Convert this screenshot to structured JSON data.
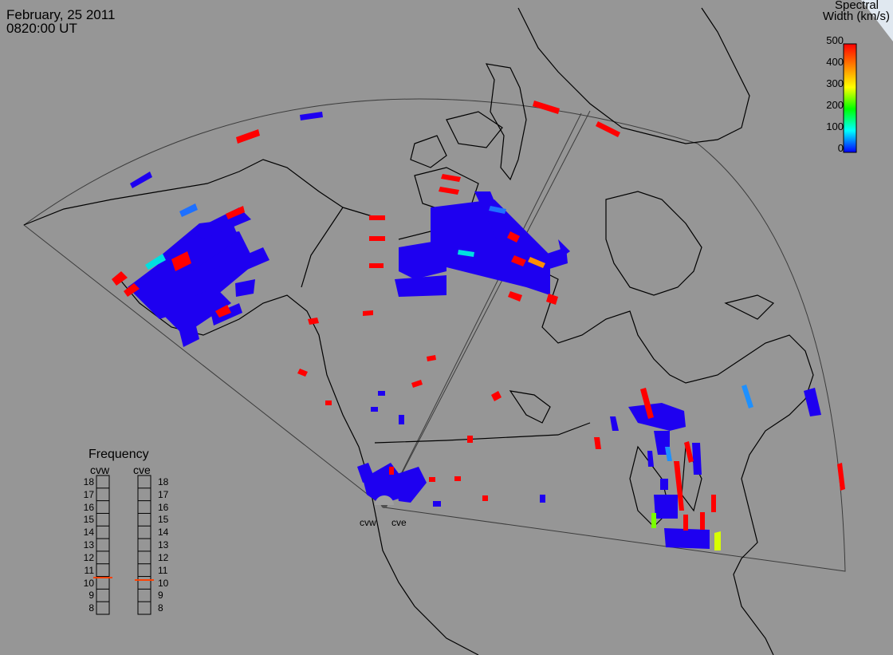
{
  "header": {
    "date": "February, 25 2011",
    "time": "0820:00 UT"
  },
  "colorbar": {
    "title_line1": "Spectral",
    "title_line2": "Width (km/s)",
    "ticks": [
      "500",
      "400",
      "300",
      "200",
      "100",
      "0"
    ],
    "min": 0,
    "max": 500,
    "colors": [
      "#0000ff",
      "#00ffff",
      "#00ff00",
      "#ffff00",
      "#ff8000",
      "#ff0000"
    ]
  },
  "frequency_panel": {
    "title": "Frequency",
    "radars": [
      "cvw",
      "cve"
    ],
    "ticks": [
      "18",
      "17",
      "16",
      "15",
      "14",
      "13",
      "12",
      "11",
      "10",
      "9",
      "8"
    ],
    "current_MHz": {
      "cvw": 10.9,
      "cve": 10.9
    },
    "marker_color": "#ff4000"
  },
  "radar_sites": [
    "cvw",
    "cve"
  ],
  "colors": {
    "background": "#969696",
    "coast": "#000000",
    "fov": "#3c3c3c",
    "low_width": "#1e00f0",
    "high_width": "#ff0000"
  },
  "chart_data": {
    "type": "scatter",
    "variable": "Spectral Width (km/s)",
    "range": [
      0,
      500
    ],
    "scale_labels": [
      "0",
      "100",
      "200",
      "300",
      "400",
      "500"
    ]
  }
}
